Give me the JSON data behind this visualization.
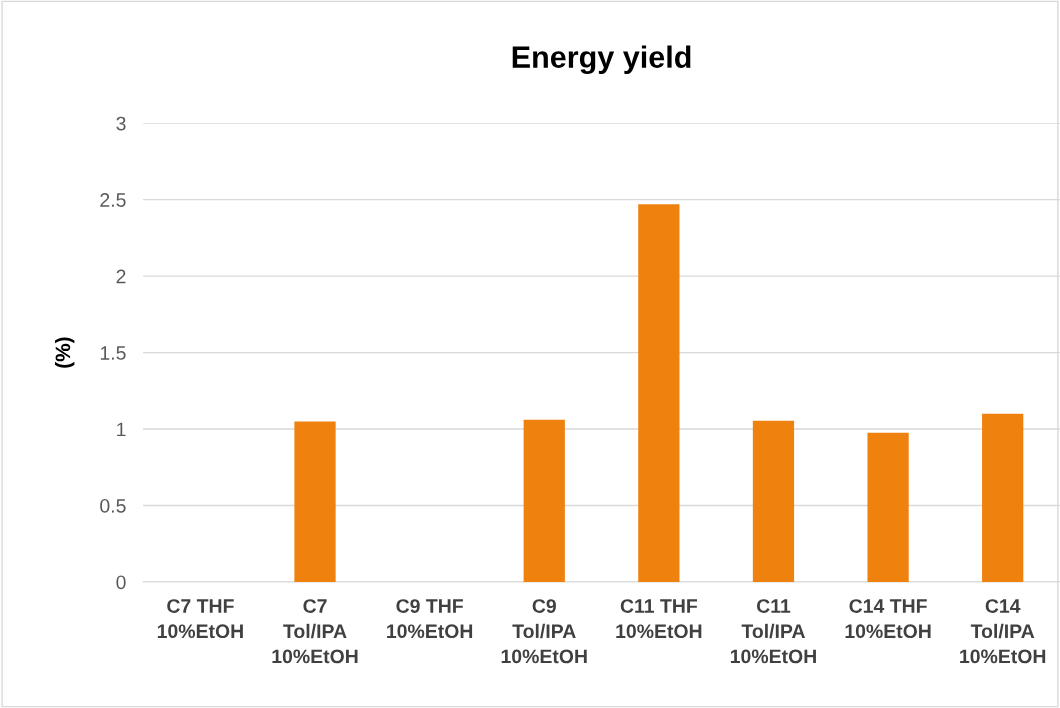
{
  "chart_data": {
    "type": "bar",
    "title": "Energy yield",
    "ylabel": "(%)",
    "categories": [
      "C7 THF\n10%EtOH",
      "C7\nTol/IPA\n10%EtOH",
      "C9 THF\n10%EtOH",
      "C9\nTol/IPA\n10%EtOH",
      "C11 THF\n10%EtOH",
      "C11\nTol/IPA\n10%EtOH",
      "C14 THF\n10%EtOH",
      "C14\nTol/IPA\n10%EtOH"
    ],
    "values": [
      0,
      1.05,
      0,
      1.06,
      2.47,
      1.055,
      0.975,
      1.1
    ],
    "color": "#ef810e",
    "ylim": [
      0,
      3
    ],
    "yticks": [
      0,
      0.5,
      1,
      1.5,
      2,
      2.5,
      3
    ],
    "grid": "y",
    "legend": false
  }
}
